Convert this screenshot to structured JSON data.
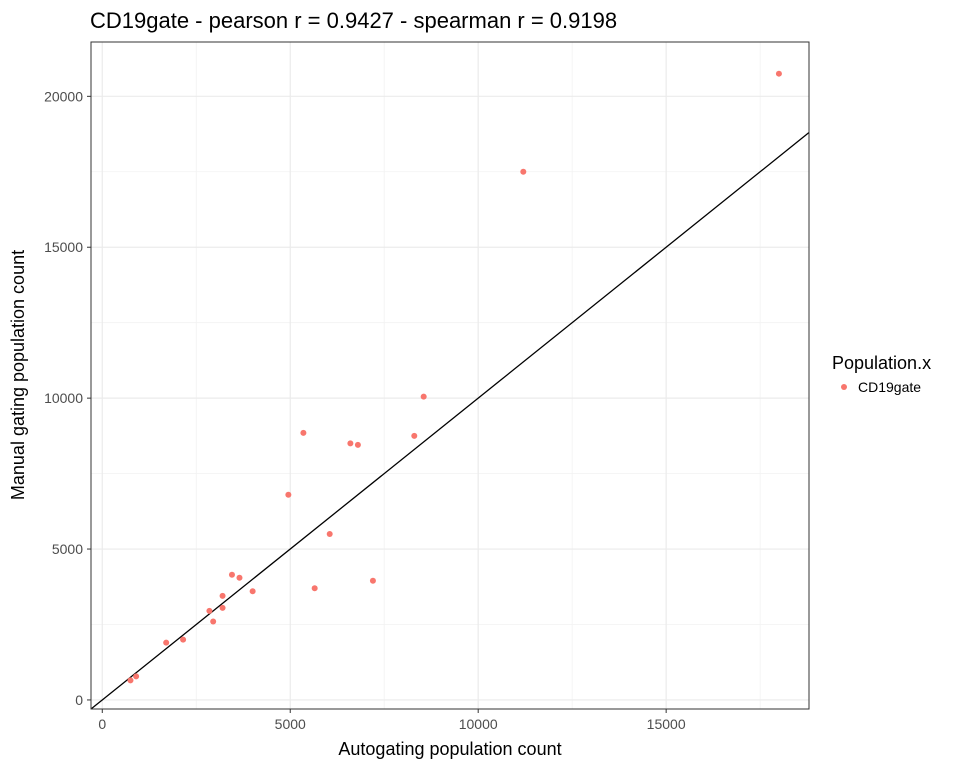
{
  "chart_data": {
    "type": "scatter",
    "title": "CD19gate - pearson r = 0.9427 - spearman r = 0.9198",
    "xlabel": "Autogating population count",
    "ylabel": "Manual gating population count",
    "xlim": [
      -300,
      18800
    ],
    "ylim": [
      -300,
      21800
    ],
    "x_ticks": [
      0,
      5000,
      10000,
      15000
    ],
    "y_ticks": [
      0,
      5000,
      10000,
      15000,
      20000
    ],
    "x_tick_labels": [
      "0",
      "5000",
      "10000",
      "15000"
    ],
    "y_tick_labels": [
      "0",
      "5000",
      "10000",
      "15000",
      "20000"
    ],
    "grid": true,
    "reference_line": "y = x",
    "legend": {
      "title": "Population.x",
      "placement": "right"
    },
    "series": [
      {
        "name": "CD19gate",
        "color": "#F8766D",
        "points": [
          {
            "x": 750,
            "y": 650
          },
          {
            "x": 900,
            "y": 780
          },
          {
            "x": 1700,
            "y": 1900
          },
          {
            "x": 2150,
            "y": 2000
          },
          {
            "x": 2850,
            "y": 2950
          },
          {
            "x": 2950,
            "y": 2600
          },
          {
            "x": 3200,
            "y": 3050
          },
          {
            "x": 3200,
            "y": 3450
          },
          {
            "x": 3450,
            "y": 4150
          },
          {
            "x": 3650,
            "y": 4050
          },
          {
            "x": 4000,
            "y": 3600
          },
          {
            "x": 4950,
            "y": 6800
          },
          {
            "x": 5350,
            "y": 8850
          },
          {
            "x": 5650,
            "y": 3700
          },
          {
            "x": 6050,
            "y": 5500
          },
          {
            "x": 6600,
            "y": 8500
          },
          {
            "x": 6800,
            "y": 8450
          },
          {
            "x": 7200,
            "y": 3950
          },
          {
            "x": 8300,
            "y": 8750
          },
          {
            "x": 8550,
            "y": 10050
          },
          {
            "x": 11200,
            "y": 17500
          },
          {
            "x": 18000,
            "y": 20750
          }
        ]
      }
    ]
  }
}
